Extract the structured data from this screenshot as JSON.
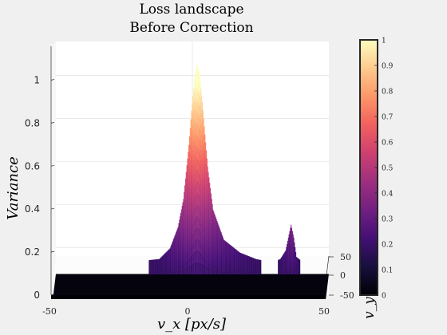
{
  "chart_data": {
    "type": "surface",
    "title": [
      "Loss landscape",
      "Before Correction"
    ],
    "xlabel": "v_x [px/s]",
    "ylabel": "v_y",
    "zlabel": "Variance",
    "xlim": [
      -50,
      50
    ],
    "ylim": [
      -50,
      50
    ],
    "zlim": [
      0,
      1.15
    ],
    "x_ticks": [
      -50,
      0,
      50
    ],
    "y_ticks": [
      -50,
      0,
      50
    ],
    "z_ticks": [
      0,
      0.2,
      0.4,
      0.6,
      0.8,
      1
    ],
    "floor_value": 0.18,
    "peaks": [
      {
        "vx": 2,
        "value": 1.1
      },
      {
        "vx": 37,
        "value": 0.35
      }
    ],
    "profile_vx": [
      -50,
      -20,
      -12,
      -8,
      -5,
      -3,
      -1,
      0,
      1,
      2,
      3,
      4,
      6,
      8,
      12,
      18,
      24,
      28,
      31,
      33,
      35,
      36,
      37,
      38,
      39,
      41,
      44,
      50
    ],
    "profile_values": [
      0.18,
      0.18,
      0.19,
      0.24,
      0.34,
      0.47,
      0.72,
      0.88,
      1.02,
      1.1,
      1.05,
      0.92,
      0.62,
      0.42,
      0.28,
      0.22,
      0.19,
      0.18,
      0.18,
      0.19,
      0.23,
      0.29,
      0.35,
      0.29,
      0.2,
      0.18,
      0.18,
      0.18
    ],
    "colorbar": {
      "ticks": [
        0,
        0.1,
        0.2,
        0.3,
        0.4,
        0.5,
        0.6,
        0.7,
        0.8,
        0.9,
        1
      ],
      "colormap": "magma",
      "colors": [
        "#000004",
        "#180f3d",
        "#440f76",
        "#721f81",
        "#9e2f7f",
        "#cd4071",
        "#f1605d",
        "#fd9668",
        "#feca8d",
        "#fcfdbf"
      ]
    },
    "grid": true
  }
}
